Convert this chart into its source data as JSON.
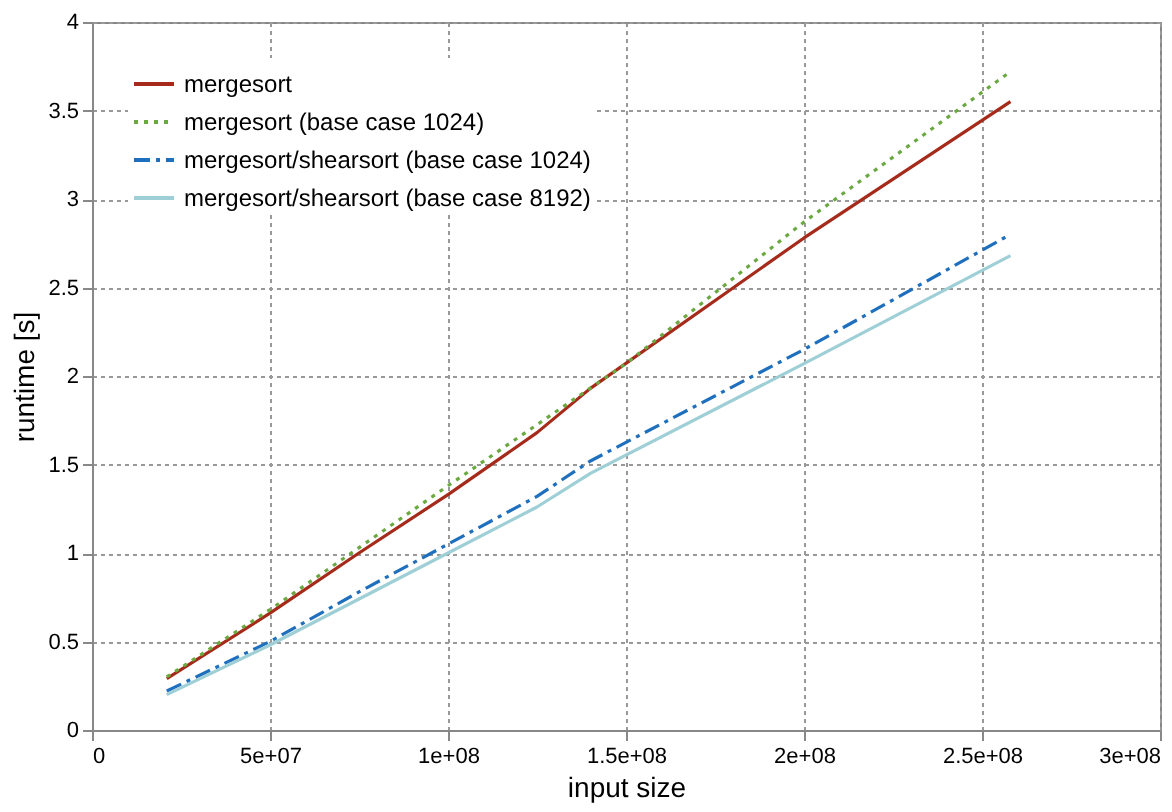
{
  "chart_data": {
    "type": "line",
    "xlabel": "input size",
    "ylabel": "runtime [s]",
    "xlim": [
      0,
      300000000
    ],
    "ylim": [
      0,
      4
    ],
    "xticks": [
      0,
      {
        "value": 50000000,
        "label": "5e+07"
      },
      {
        "value": 100000000,
        "label": "1e+08"
      },
      {
        "value": 150000000,
        "label": "1.5e+08"
      },
      {
        "value": 200000000,
        "label": "2e+08"
      },
      {
        "value": 250000000,
        "label": "2.5e+08"
      },
      {
        "value": 300000000,
        "label": "3e+08"
      }
    ],
    "yticks": [
      0,
      0.5,
      1,
      1.5,
      2,
      2.5,
      3,
      3.5,
      4
    ],
    "grid": true,
    "legend": "top left",
    "marker": "none",
    "series": [
      {
        "name": "mergesort",
        "color": "#a52a1a",
        "line_style": "solid",
        "x": [
          21000000,
          50000000,
          75000000,
          100000000,
          125000000,
          140000000,
          200000000,
          258000000
        ],
        "values": [
          0.29,
          0.66,
          1.0,
          1.33,
          1.68,
          1.93,
          2.78,
          3.55
        ]
      },
      {
        "name": "mergesort (base case 1024)",
        "color": "#6aa840",
        "line_style": "dotted",
        "x": [
          21000000,
          50000000,
          100000000,
          150000000,
          200000000,
          258000000
        ],
        "values": [
          0.3,
          0.68,
          1.38,
          2.07,
          2.87,
          3.72
        ]
      },
      {
        "name": "mergesort/shearsort (base case 1024)",
        "color": "#1f6fbf",
        "line_style": "dashdot",
        "x": [
          21000000,
          50000000,
          75000000,
          100000000,
          125000000,
          140000000,
          200000000,
          258000000
        ],
        "values": [
          0.22,
          0.5,
          0.78,
          1.05,
          1.32,
          1.52,
          2.15,
          2.8
        ]
      },
      {
        "name": "mergesort/shearsort (base case 8192)",
        "color": "#9fcfd6",
        "line_style": "solid",
        "x": [
          21000000,
          50000000,
          100000000,
          125000000,
          140000000,
          200000000,
          258000000
        ],
        "values": [
          0.2,
          0.48,
          1.0,
          1.26,
          1.45,
          2.07,
          2.68
        ]
      }
    ]
  }
}
